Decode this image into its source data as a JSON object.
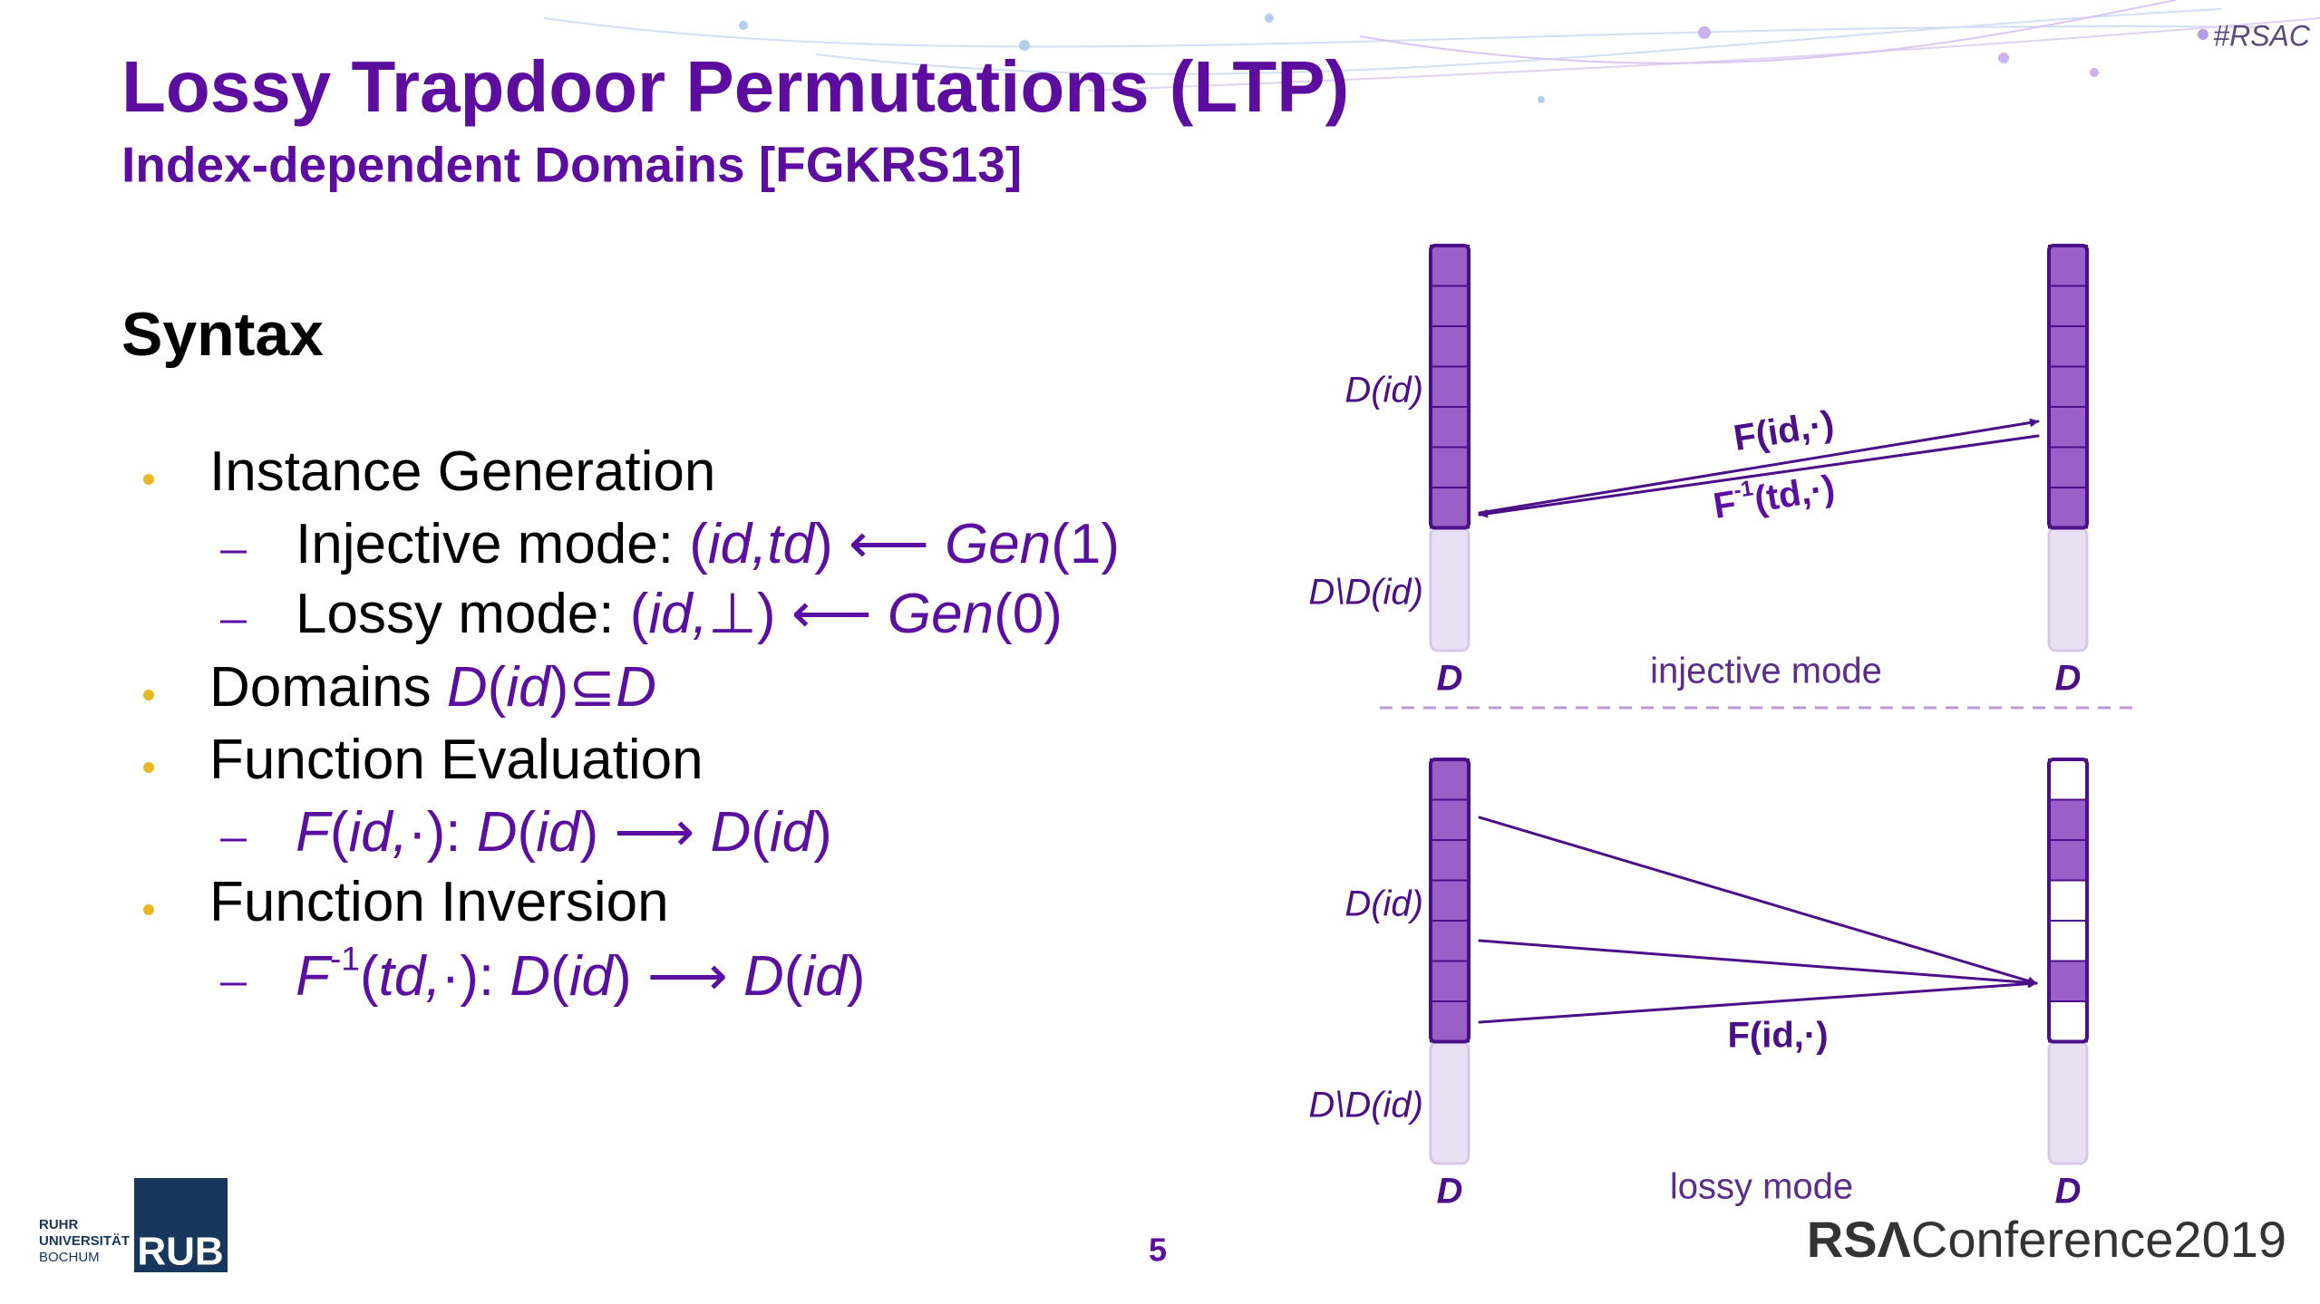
{
  "header": {
    "title": "Lossy Trapdoor Permutations (LTP)",
    "subtitle": "Index-dependent Domains [FGKRS13]",
    "tag": "#RSAC"
  },
  "syntax": {
    "heading": "Syntax",
    "items": [
      {
        "text": [
          "Instance Generation"
        ],
        "sub": [
          [
            "Injective mode: ",
            "(",
            "id,td",
            ") ⟵ ",
            "Gen",
            "(1)"
          ],
          [
            "Lossy mode: ",
            "(",
            "id,",
            "⊥) ⟵ ",
            "Gen",
            "(0)"
          ]
        ]
      },
      {
        "text": [
          "Domains ",
          "D",
          "(",
          "id",
          ")⊆",
          "D"
        ]
      },
      {
        "text": [
          "Function Evaluation"
        ],
        "sub": [
          [
            "F",
            "(",
            "id,",
            "·): ",
            "D",
            "(",
            "id",
            ") ⟶ ",
            "D",
            "(",
            "id",
            ")"
          ]
        ]
      },
      {
        "text": [
          "Function Inversion"
        ],
        "sub": [
          [
            "F",
            "-1",
            "(",
            "td,",
            "·): ",
            "D",
            "(",
            "id",
            ") ⟶ ",
            "D",
            "(",
            "id",
            ")"
          ]
        ]
      }
    ]
  },
  "diagram": {
    "injective": {
      "domain_label": "D(id)",
      "complement_label": "D\\D(id)",
      "left_label": "D",
      "right_label": "D",
      "mode_label": "injective mode",
      "forward_label": "F(id,·)",
      "inverse_label": [
        "F",
        "-1",
        "(td,·)"
      ]
    },
    "lossy": {
      "domain_label": "D(id)",
      "complement_label": "D\\D(id)",
      "left_label": "D",
      "right_label": "D",
      "mode_label": "lossy mode",
      "forward_label": "F(id,·)"
    }
  },
  "footer": {
    "university": [
      "RUHR",
      "UNIVERSITÄT",
      "BOCHUM"
    ],
    "logo": "RUB",
    "page": "5",
    "brand": [
      "RSΛ",
      "Conference2019"
    ]
  }
}
